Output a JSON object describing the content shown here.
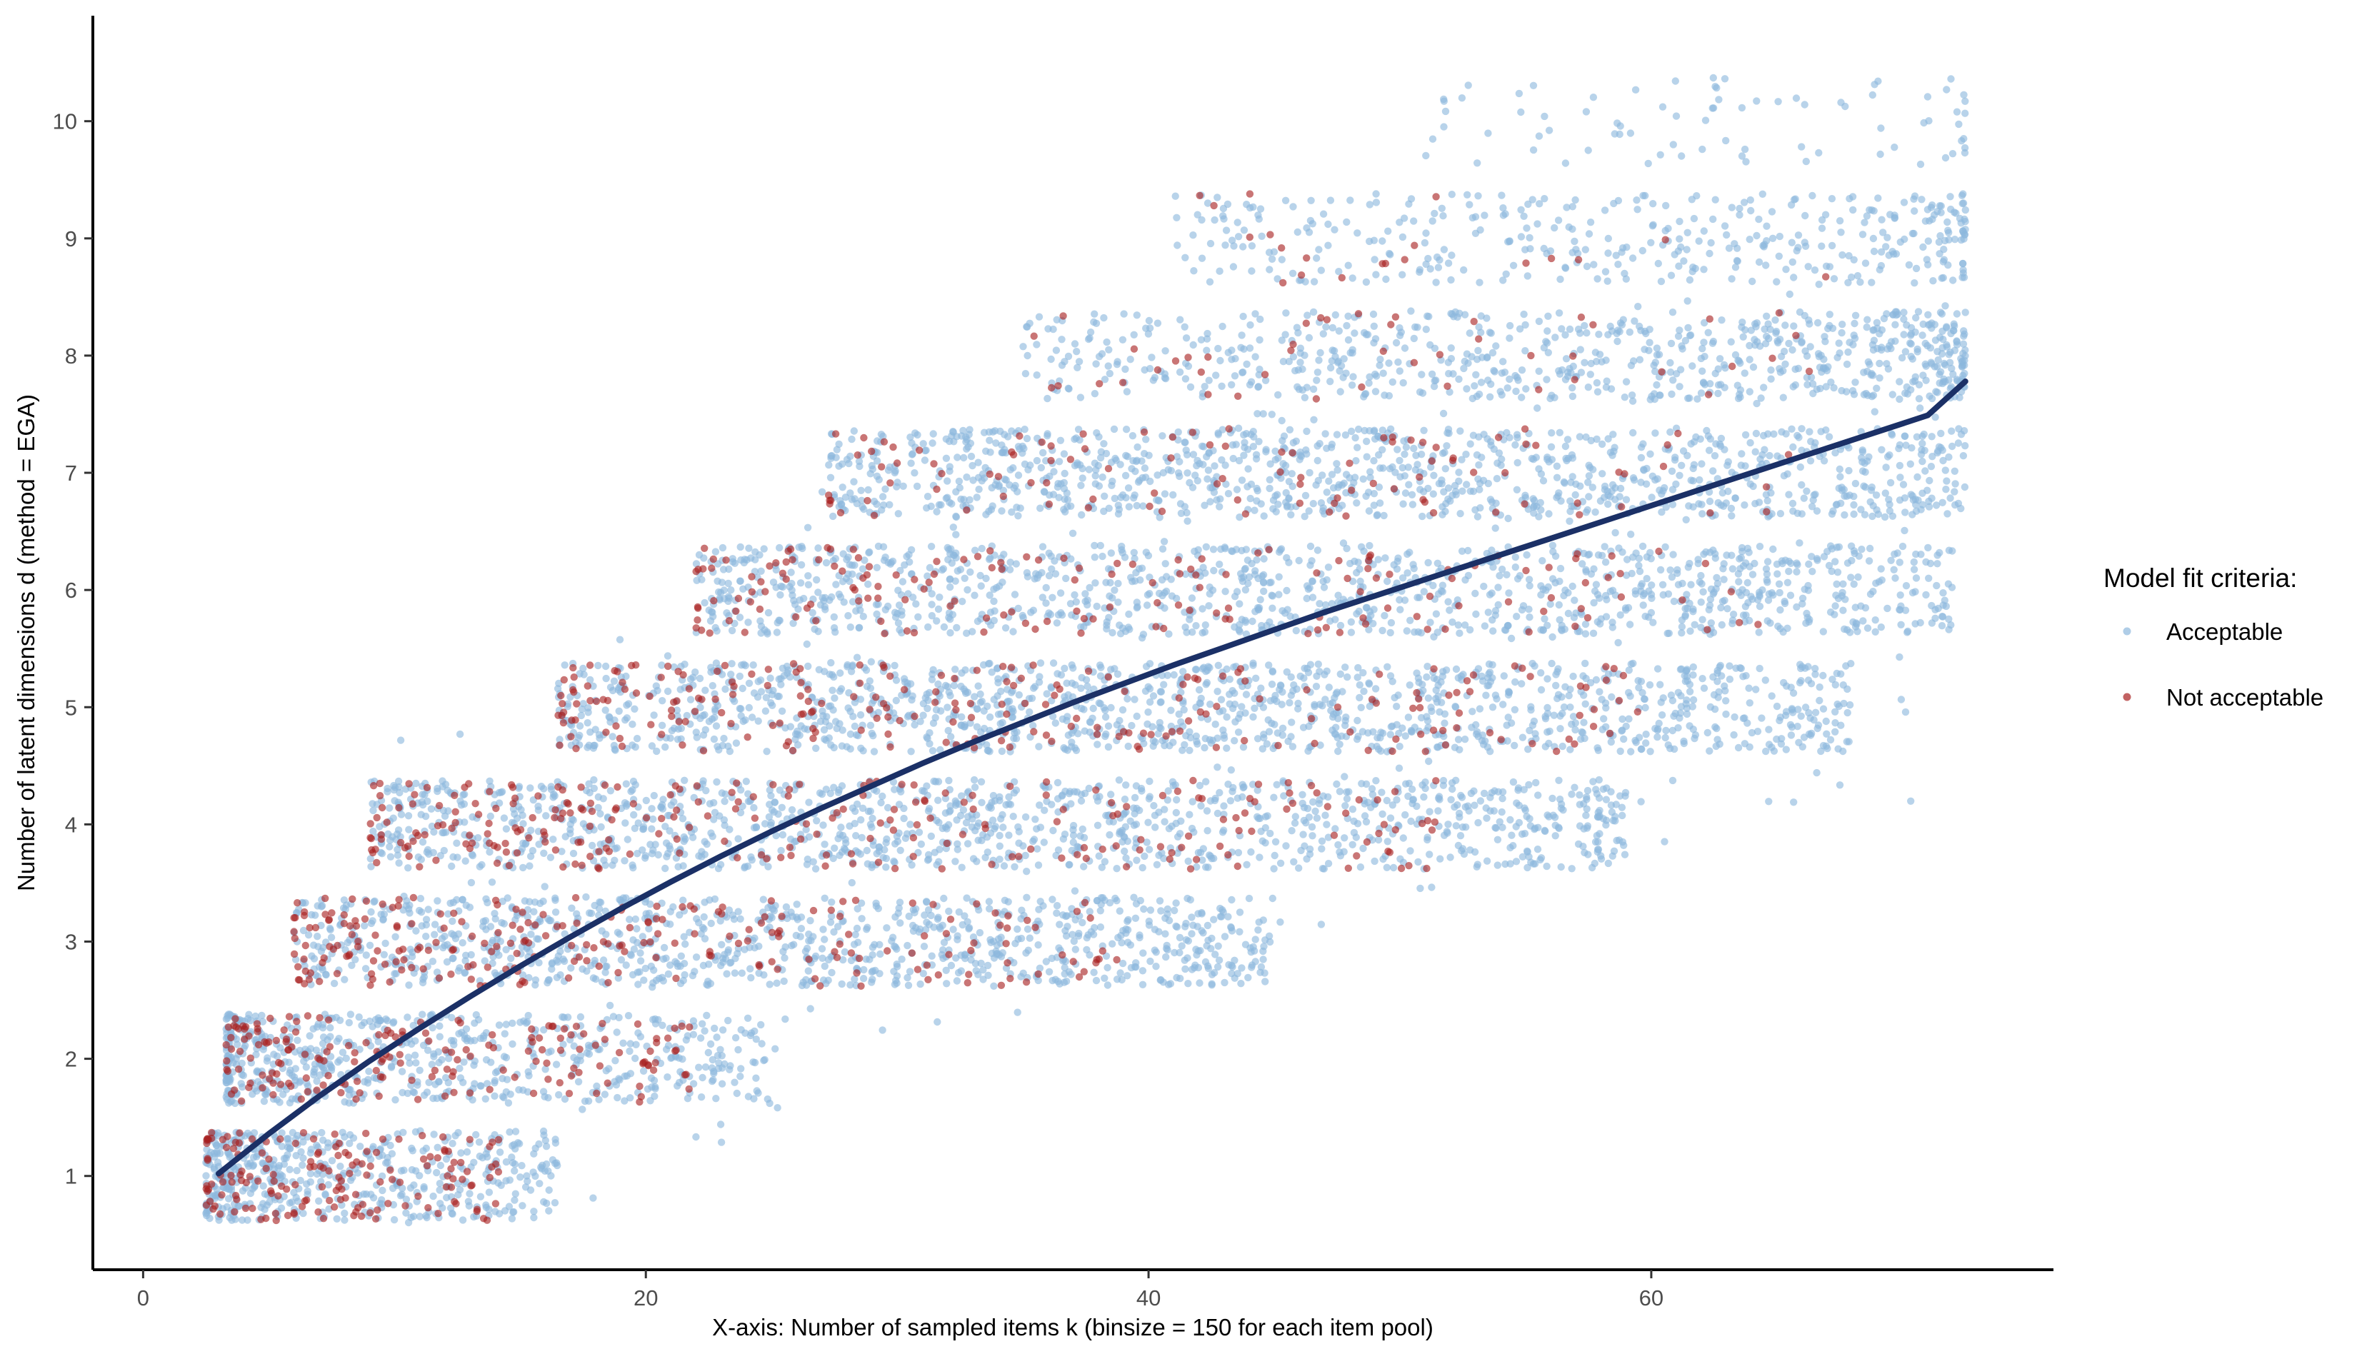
{
  "chart_data": {
    "type": "scatter",
    "title": "",
    "xlabel": "X-axis: Number of sampled items k (binsize = 150 for each item pool)",
    "ylabel": "Number of latent dimensions d (method = EGA)",
    "xlim": [
      -2,
      76
    ],
    "ylim": [
      0.2,
      10.9
    ],
    "x_ticks": [
      0,
      20,
      40,
      60
    ],
    "y_ticks": [
      1,
      2,
      3,
      4,
      5,
      6,
      7,
      8,
      9,
      10
    ],
    "grid": false,
    "legend_placement": "right",
    "legend_title": "Model fit criteria:",
    "point_jitter_note": "points are jittered around integer dimension values",
    "series": [
      {
        "name": "Acceptable",
        "color": "#8db8dd",
        "marker": "point",
        "approx_points": 7000
      },
      {
        "name": "Not acceptable",
        "color": "#a82020",
        "marker": "point",
        "approx_points": 1300
      }
    ],
    "band_density": [
      {
        "d": 1,
        "x_range": [
          2.5,
          16.5
        ],
        "accept": 520,
        "not": 160
      },
      {
        "d": 2,
        "x_range": [
          3.3,
          25.0
        ],
        "accept": 620,
        "not": 180
      },
      {
        "d": 3,
        "x_range": [
          6.0,
          45.0
        ],
        "accept": 950,
        "not": 230
      },
      {
        "d": 4,
        "x_range": [
          9.0,
          59.0
        ],
        "accept": 1150,
        "not": 250
      },
      {
        "d": 5,
        "x_range": [
          16.5,
          68.0
        ],
        "accept": 1250,
        "not": 220
      },
      {
        "d": 6,
        "x_range": [
          22.0,
          72.0
        ],
        "accept": 1100,
        "not": 160
      },
      {
        "d": 7,
        "x_range": [
          27.0,
          72.5
        ],
        "accept": 1050,
        "not": 100
      },
      {
        "d": 8,
        "x_range": [
          35.0,
          72.5
        ],
        "accept": 700,
        "not": 45
      },
      {
        "d": 9,
        "x_range": [
          41.0,
          72.5
        ],
        "accept": 380,
        "not": 20
      },
      {
        "d": 10,
        "x_range": [
          51.0,
          72.5
        ],
        "accept": 80,
        "not": 0
      }
    ],
    "trend_line": {
      "name": "fit",
      "color": "#1b3066",
      "x": [
        3,
        5,
        7,
        9,
        11,
        13,
        15,
        17,
        19,
        21,
        23,
        25,
        27,
        29,
        31,
        33,
        35,
        37,
        39,
        41,
        43,
        45,
        47,
        49,
        51,
        53,
        55,
        57,
        59,
        61,
        63,
        65,
        67,
        69,
        71,
        72.5
      ],
      "y": [
        1.02,
        1.36,
        1.68,
        1.98,
        2.26,
        2.53,
        2.79,
        3.04,
        3.28,
        3.51,
        3.73,
        3.94,
        4.14,
        4.33,
        4.52,
        4.7,
        4.87,
        5.04,
        5.2,
        5.36,
        5.51,
        5.66,
        5.81,
        5.95,
        6.09,
        6.23,
        6.37,
        6.51,
        6.65,
        6.79,
        6.93,
        7.07,
        7.21,
        7.35,
        7.49,
        7.78
      ]
    }
  }
}
